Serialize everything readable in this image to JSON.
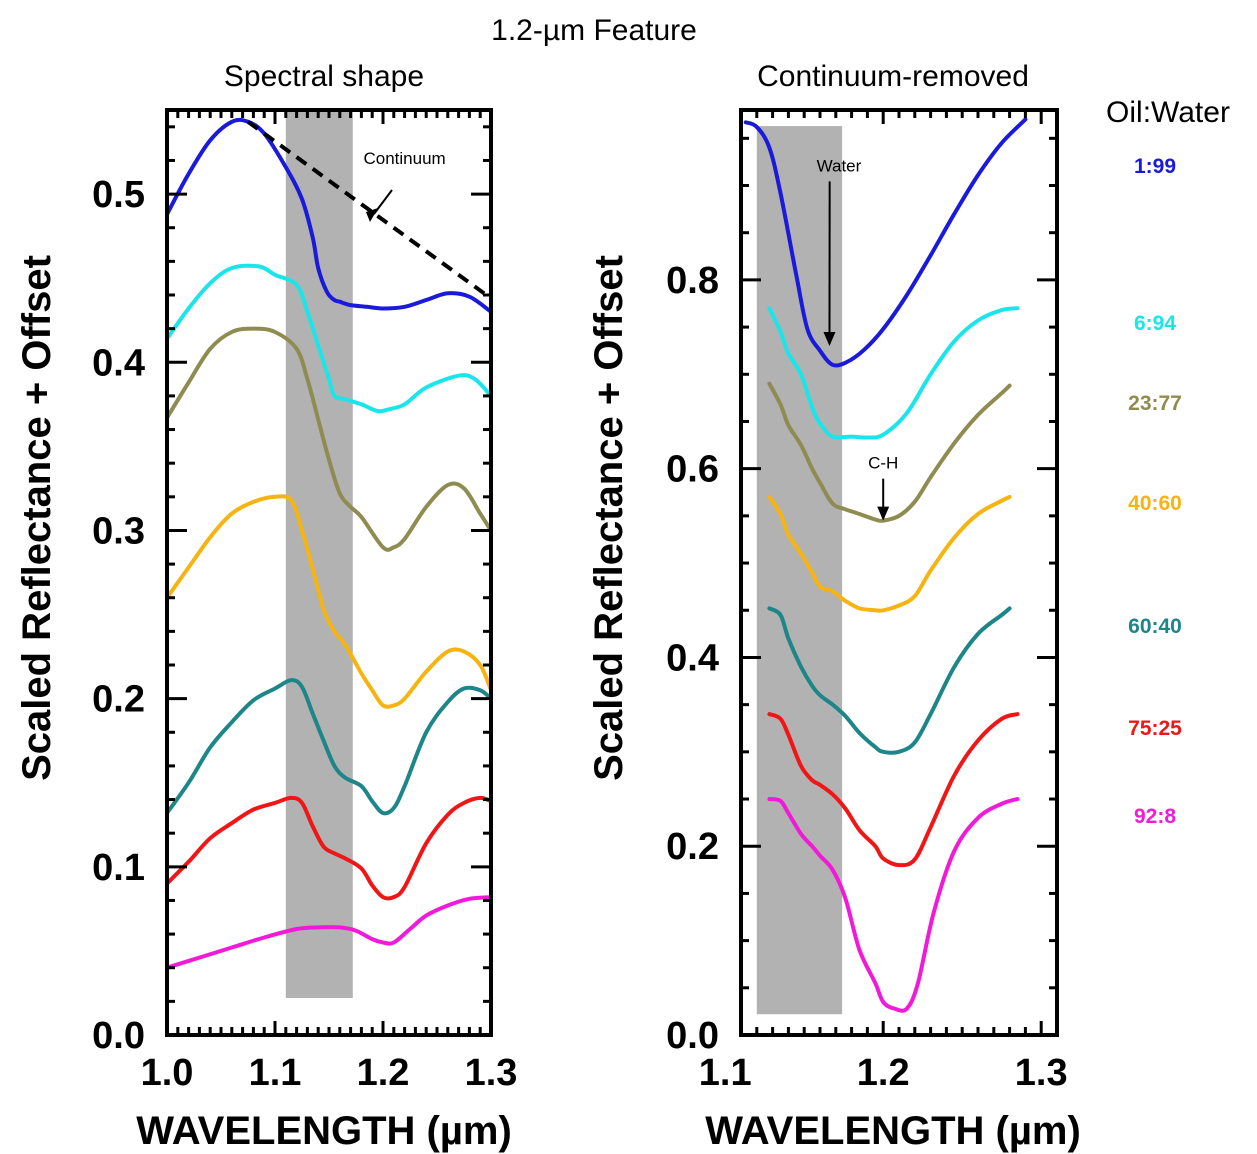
{
  "figure_title": "1.2-µm Feature",
  "legend": {
    "title": "Oil:Water",
    "entries": [
      {
        "label": "1:99",
        "color": "#1a1adc"
      },
      {
        "label": "6:94",
        "color": "#19e6ea"
      },
      {
        "label": "23:77",
        "color": "#8f8c52"
      },
      {
        "label": "40:60",
        "color": "#f7b411"
      },
      {
        "label": "60:40",
        "color": "#1c8688"
      },
      {
        "label": "75:25",
        "color": "#f01616"
      },
      {
        "label": "92:8",
        "color": "#f01ad8"
      }
    ]
  },
  "chart_data": [
    {
      "type": "line",
      "title": "Spectral shape",
      "xlabel": "WAVELENGTH (µm)",
      "ylabel": "Scaled Reflectance + Offset",
      "xlim": [
        1.0,
        1.3
      ],
      "ylim": [
        0.0,
        0.55
      ],
      "xticks": [
        "1.0",
        "1.1",
        "1.2",
        "1.3"
      ],
      "yticks": [
        "0.0",
        "0.1",
        "0.2",
        "0.3",
        "0.4",
        "0.5"
      ],
      "shaded_band": {
        "x": [
          1.11,
          1.172
        ],
        "y": [
          0.022,
          0.549
        ]
      },
      "continuum": {
        "x": [
          1.075,
          1.3
        ],
        "y": [
          0.543,
          0.438
        ]
      },
      "annotations": [
        {
          "text": "Continuum",
          "x": 1.22,
          "y": 0.518
        }
      ],
      "series": [
        {
          "name": "1:99",
          "color": "#1a1adc",
          "x": [
            1.0,
            1.02,
            1.04,
            1.06,
            1.075,
            1.09,
            1.11,
            1.125,
            1.135,
            1.14,
            1.148,
            1.155,
            1.16,
            1.17,
            1.185,
            1.2,
            1.22,
            1.24,
            1.26,
            1.28,
            1.3
          ],
          "y": [
            0.488,
            0.512,
            0.532,
            0.543,
            0.543,
            0.536,
            0.516,
            0.497,
            0.474,
            0.456,
            0.442,
            0.437,
            0.436,
            0.434,
            0.433,
            0.432,
            0.433,
            0.437,
            0.441,
            0.439,
            0.43
          ]
        },
        {
          "name": "6:94",
          "color": "#19e6ea",
          "x": [
            1.0,
            1.02,
            1.04,
            1.06,
            1.085,
            1.1,
            1.12,
            1.13,
            1.14,
            1.15,
            1.155,
            1.165,
            1.18,
            1.195,
            1.205,
            1.22,
            1.24,
            1.27,
            1.285,
            1.3
          ],
          "y": [
            0.414,
            0.432,
            0.447,
            0.456,
            0.457,
            0.452,
            0.446,
            0.43,
            0.41,
            0.39,
            0.38,
            0.378,
            0.375,
            0.371,
            0.372,
            0.375,
            0.385,
            0.392,
            0.39,
            0.38
          ]
        },
        {
          "name": "23:77",
          "color": "#8f8c52",
          "x": [
            1.0,
            1.02,
            1.04,
            1.06,
            1.08,
            1.1,
            1.12,
            1.13,
            1.14,
            1.15,
            1.16,
            1.17,
            1.18,
            1.2,
            1.21,
            1.22,
            1.24,
            1.26,
            1.275,
            1.29,
            1.3
          ],
          "y": [
            0.367,
            0.388,
            0.408,
            0.418,
            0.42,
            0.418,
            0.408,
            0.39,
            0.366,
            0.342,
            0.322,
            0.314,
            0.308,
            0.29,
            0.29,
            0.295,
            0.314,
            0.327,
            0.325,
            0.31,
            0.3
          ]
        },
        {
          "name": "40:60",
          "color": "#f7b411",
          "x": [
            1.0,
            1.02,
            1.04,
            1.06,
            1.08,
            1.1,
            1.115,
            1.125,
            1.135,
            1.145,
            1.155,
            1.165,
            1.18,
            1.19,
            1.2,
            1.21,
            1.22,
            1.24,
            1.26,
            1.275,
            1.29,
            1.3
          ],
          "y": [
            0.26,
            0.278,
            0.296,
            0.31,
            0.317,
            0.32,
            0.318,
            0.3,
            0.277,
            0.253,
            0.24,
            0.232,
            0.215,
            0.205,
            0.196,
            0.196,
            0.2,
            0.216,
            0.228,
            0.228,
            0.22,
            0.205
          ]
        },
        {
          "name": "60:40",
          "color": "#1c8688",
          "x": [
            1.0,
            1.02,
            1.04,
            1.06,
            1.08,
            1.1,
            1.115,
            1.125,
            1.135,
            1.145,
            1.155,
            1.165,
            1.18,
            1.19,
            1.2,
            1.21,
            1.22,
            1.24,
            1.26,
            1.275,
            1.29,
            1.3
          ],
          "y": [
            0.132,
            0.15,
            0.171,
            0.186,
            0.199,
            0.206,
            0.211,
            0.207,
            0.191,
            0.175,
            0.16,
            0.153,
            0.148,
            0.139,
            0.132,
            0.135,
            0.148,
            0.18,
            0.198,
            0.206,
            0.205,
            0.2
          ]
        },
        {
          "name": "75:25",
          "color": "#f01616",
          "x": [
            1.0,
            1.02,
            1.04,
            1.06,
            1.08,
            1.1,
            1.115,
            1.125,
            1.135,
            1.145,
            1.155,
            1.165,
            1.18,
            1.19,
            1.2,
            1.21,
            1.22,
            1.24,
            1.26,
            1.275,
            1.29,
            1.3
          ],
          "y": [
            0.09,
            0.103,
            0.117,
            0.126,
            0.134,
            0.138,
            0.141,
            0.138,
            0.124,
            0.112,
            0.108,
            0.105,
            0.099,
            0.089,
            0.082,
            0.082,
            0.088,
            0.114,
            0.131,
            0.138,
            0.141,
            0.139
          ]
        },
        {
          "name": "92:8",
          "color": "#f01ad8",
          "x": [
            1.0,
            1.03,
            1.06,
            1.09,
            1.12,
            1.14,
            1.16,
            1.175,
            1.19,
            1.2,
            1.21,
            1.225,
            1.24,
            1.26,
            1.28,
            1.3
          ],
          "y": [
            0.04,
            0.046,
            0.052,
            0.058,
            0.063,
            0.064,
            0.064,
            0.062,
            0.057,
            0.055,
            0.055,
            0.063,
            0.071,
            0.077,
            0.081,
            0.082
          ]
        }
      ]
    },
    {
      "type": "line",
      "title": "Continuum-removed",
      "xlabel": "WAVELENGTH (µm)",
      "ylabel": "Scaled Reflectance + Offset",
      "xlim": [
        1.11,
        1.31
      ],
      "ylim": [
        0.0,
        0.98
      ],
      "xticks": [
        "1.1",
        "1.2",
        "1.3"
      ],
      "yticks": [
        "0.0",
        "0.2",
        "0.4",
        "0.6",
        "0.8"
      ],
      "shaded_band": {
        "x": [
          1.12,
          1.174
        ],
        "y": [
          0.022,
          0.963
        ]
      },
      "annotations": [
        {
          "text": "Water",
          "x": 1.172,
          "y": 0.915,
          "arrow_to": [
            1.166,
            0.73
          ]
        },
        {
          "text": "C-H",
          "x": 1.2,
          "y": 0.6,
          "arrow_to": [
            1.2,
            0.545
          ]
        }
      ],
      "series": [
        {
          "name": "1:99",
          "color": "#1a1adc",
          "x": [
            1.113,
            1.12,
            1.128,
            1.135,
            1.145,
            1.152,
            1.16,
            1.168,
            1.177,
            1.188,
            1.2,
            1.215,
            1.23,
            1.245,
            1.26,
            1.275,
            1.29
          ],
          "y": [
            0.967,
            0.962,
            0.94,
            0.892,
            0.805,
            0.748,
            0.725,
            0.71,
            0.713,
            0.726,
            0.748,
            0.784,
            0.826,
            0.87,
            0.911,
            0.945,
            0.97
          ]
        },
        {
          "name": "6:94",
          "color": "#19e6ea",
          "x": [
            1.128,
            1.135,
            1.14,
            1.148,
            1.155,
            1.16,
            1.168,
            1.18,
            1.19,
            1.2,
            1.215,
            1.23,
            1.245,
            1.26,
            1.275,
            1.285
          ],
          "y": [
            0.77,
            0.745,
            0.722,
            0.7,
            0.665,
            0.648,
            0.634,
            0.634,
            0.633,
            0.636,
            0.659,
            0.7,
            0.735,
            0.757,
            0.768,
            0.77
          ]
        },
        {
          "name": "23:77",
          "color": "#8f8c52",
          "x": [
            1.128,
            1.135,
            1.14,
            1.148,
            1.155,
            1.16,
            1.168,
            1.176,
            1.185,
            1.195,
            1.2,
            1.21,
            1.22,
            1.23,
            1.245,
            1.26,
            1.275,
            1.28
          ],
          "y": [
            0.69,
            0.668,
            0.646,
            0.625,
            0.6,
            0.585,
            0.563,
            0.557,
            0.552,
            0.546,
            0.545,
            0.55,
            0.565,
            0.591,
            0.627,
            0.657,
            0.68,
            0.688
          ]
        },
        {
          "name": "40:60",
          "color": "#f7b411",
          "x": [
            1.128,
            1.135,
            1.14,
            1.148,
            1.155,
            1.16,
            1.168,
            1.176,
            1.185,
            1.195,
            1.2,
            1.21,
            1.22,
            1.23,
            1.245,
            1.26,
            1.275,
            1.28
          ],
          "y": [
            0.57,
            0.552,
            0.53,
            0.51,
            0.49,
            0.475,
            0.47,
            0.46,
            0.452,
            0.45,
            0.45,
            0.455,
            0.465,
            0.492,
            0.527,
            0.552,
            0.566,
            0.57
          ]
        },
        {
          "name": "60:40",
          "color": "#1c8688",
          "x": [
            1.128,
            1.135,
            1.14,
            1.148,
            1.155,
            1.16,
            1.168,
            1.176,
            1.185,
            1.195,
            1.2,
            1.21,
            1.22,
            1.23,
            1.245,
            1.26,
            1.275,
            1.28
          ],
          "y": [
            0.452,
            0.445,
            0.42,
            0.39,
            0.37,
            0.36,
            0.35,
            0.338,
            0.32,
            0.305,
            0.3,
            0.3,
            0.31,
            0.34,
            0.39,
            0.425,
            0.445,
            0.452
          ]
        },
        {
          "name": "75:25",
          "color": "#f01616",
          "x": [
            1.128,
            1.135,
            1.14,
            1.148,
            1.155,
            1.16,
            1.168,
            1.176,
            1.185,
            1.195,
            1.2,
            1.21,
            1.22,
            1.23,
            1.245,
            1.26,
            1.275,
            1.285
          ],
          "y": [
            0.34,
            0.335,
            0.318,
            0.285,
            0.27,
            0.265,
            0.255,
            0.24,
            0.217,
            0.2,
            0.187,
            0.18,
            0.186,
            0.22,
            0.275,
            0.312,
            0.335,
            0.34
          ]
        },
        {
          "name": "92:8",
          "color": "#f01ad8",
          "x": [
            1.128,
            1.135,
            1.14,
            1.148,
            1.155,
            1.16,
            1.168,
            1.176,
            1.185,
            1.195,
            1.2,
            1.207,
            1.215,
            1.222,
            1.232,
            1.245,
            1.26,
            1.275,
            1.285
          ],
          "y": [
            0.25,
            0.248,
            0.235,
            0.213,
            0.2,
            0.19,
            0.175,
            0.145,
            0.09,
            0.055,
            0.035,
            0.028,
            0.028,
            0.055,
            0.13,
            0.195,
            0.23,
            0.245,
            0.25
          ]
        }
      ]
    }
  ]
}
